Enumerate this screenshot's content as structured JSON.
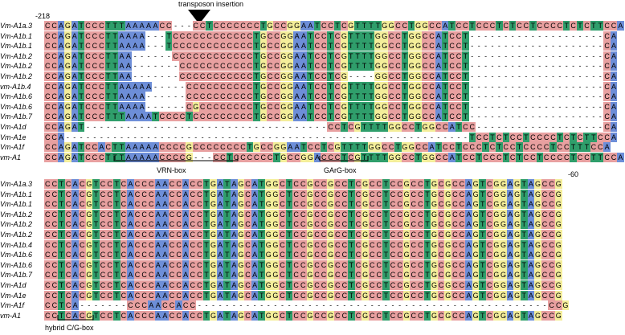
{
  "annotations": {
    "pos_start": "-218",
    "pos_end": "-60",
    "transposon": "transposon insertion",
    "vrn_box": "VRN-box",
    "garg_box": "GArG-box",
    "hybrid_box": "hybrid C/G-box"
  },
  "colors": {
    "C": "#e8a0a0",
    "T": "#2f9e6b",
    "G": "#f4ee9a",
    "A": "#6d8ed8",
    "ink": "#000000"
  },
  "block1": {
    "labels": [
      "Vm-A1a.3",
      "Vm-A1b.1",
      "Vm-A1b.1",
      "Vm-A1b.2",
      "Vm-A1b.2",
      "Vm-A1b.2",
      "vm-A1b.4",
      "Vm-A1b.6",
      "Vm-A1b.6",
      "Vm-A1b.7",
      "Vm-A1d",
      "Vm-A1e",
      "Vm-A1f",
      "vm-A1"
    ],
    "rows": [
      "CCAGATCCCTTTAAAAACC---CCTCCCCCCCTGCCGGAATCCTCGTTTTGGCCTGGCCATCCTCCCTCTCCTCCCCTCTCTTCCA",
      "CCAGATCCCTTAAAA---TCCCCCCCCCCCCTGCCGGAATCCTCGTTTTGGCCTGGCCATCCT--------------------CA",
      "CCAGATCCCTTAAAA---TCCCCCCCCCCCCTGCCGGAATCCTCGTTTTGGCCTGGCCATCCT--------------------CA",
      "CCAGATCCCTTAA------CCCCCCCCCCCCTGCCGGAATCCTCGTTTTGGCCTGGCCATCCT--------------------CA",
      "CCAGATCCCTTAA-------CCCCCCCCCCCTGCCGGAATCCTCGTTTTGGCCTGGCCATCCT--------------------CA",
      "CCAGATCCCTTAA-------CCCCCCCCCCCTGCCGGAATCCTCG----GGCCTGGCCATCCT--------------------CA",
      "CCAGATCCCTTAAAAA-----CCCCCCCCCCTGCCGGAATCCTCGTTTTGGCCTGGCCATCCT--------------------CA",
      "CCAGATCCCTTAAAA------CCCCCCCCCCTGCCGGAATCCTCGTTTTGGCCTGGCCATCCT--------------------CA",
      "CCAGATCCCTTAAAA------CGCCCCCCCCTGCCGGAATCCTCGTTTTGGCCTGGCCATCCT--------------------CA",
      "CCAGATCCCTTTAAAATCCCCTCCCCCCCCCTGCCGGAATCCTCGTTTTGGCCTGGCCATCCT--------------------CA",
      "CCAGAT------------------------------------CCTCGTTTTGGCCTGGCCATCC-------------------CA",
      "CCA------------------------------------------------------------TCCTCTCCTCCCCTCTCTTCCA",
      "CCAGATCCACTTAAAAACCCCGCCCCCCCCTGCCGGAATCCTCGTTTTGGCCTGGCCATCCTCCCTCTCCTCCCCTCCTTTCCA",
      "CCAGATCCCTTTAAAAACCCCG---CCTCCCCCCTGCCGGACCCTCGTTTTGGCCTGGCCATCCTCCCTCTCCTCCCCTCCTTCCA"
    ]
  },
  "block2": {
    "labels": [
      "Vm-A1a.3",
      "Vm-A1b.1",
      "Vm-A1b.1",
      "Vm-A1b.2",
      "Vm-A1b.2",
      "Vm-A1b.2",
      "Vm-A1b.4",
      "Vm-A1b.6",
      "Vm-A1b.6",
      "Vm-A1b.7",
      "Vm-A1d",
      "Vm-A1e",
      "Vm-A1f",
      "vm-A1"
    ],
    "rows": [
      "CCTCACGTCCTCACCCAACCACCTGATAGCATGGCTCCGCCGCCTCGCCTCCGCCTGCGCCAGTCGGAGTAGCCG",
      "CCTCACGTCCTCACCCAACCACCTGATAGCATGGCTCCGCCGCCTCGCCTCCGCCTGCGCCAGTCGGAGTAGCCG",
      "CCTCACGTCCTCACCCAACCACCTGATAGCATGGCTCCGCCGCCTCGCCTCCGCCTGCGCCAGTCGGAGTAGCCG",
      "CCTCACGTCCTCACCCAACCACCTGATAGCATGGCTCCGCCGCCTCGCCTCCGCCTGCGCCAGTCGGAGTAGCCG",
      "CCTCACGTCCTCACCCAACCACCTGATAGCATGGCTCCGCCGCCTCGCCTCCGCCTGCGCCAGTCGGAGTAGCCG",
      "CCTCACGTCCTCACCCAACCACCTGATAGCATGGCTCCGCCGCCTCGCCTCCGCCTGCGCCAGTCGGAGTAGCCG",
      "CCTCACGTCCTCACCCAACCACCTGATAGCATGGCTCCGCCGCCTCGCCTCCGCCTGCGCCAGTCGGAGTAGCCG",
      "CCTCACGTCCTCACCCAACCACCTGATAGCATGGCTCCGCCGCCTCGCCTCCGCCTGCGCCAGTCGGAGTAGCCG",
      "CCTCACGTCCTCACCCAACCACCTGATAGCATGGCTCCGCCGCCTCGCCTCCGCCTGCGCCAGTCGGAGTAGCCG",
      "CCTCACGTCCTCACCCAACCACCTGATAGCATGGCTCCGCCGCCTCGCCTCCGCCTGCGCCAGTCGGAGTAGCCG",
      "CCTCACGTCCTCACCCAACCACCTGATAGCATGGCTCCGCCGCCTCGCCTCCGCCTGCGCCAGTCGGAGTAGCCG",
      "CCTCACGTCCTCACCCAACCACCTGATAGCATGGCTCCGCCGCCTCGCCTCCGCCTGCGCCAGTCGGAGTAGCCG",
      "CCTCA-------CCCAACCACC---------------------------------------------------CCG",
      "CCTCACGTCCTCACCCAACCACCTGATAGCATGGCTCCGCCGCCTCGCCTCCGCCTGCGCCAGTCGGAGTAGCCG"
    ]
  }
}
